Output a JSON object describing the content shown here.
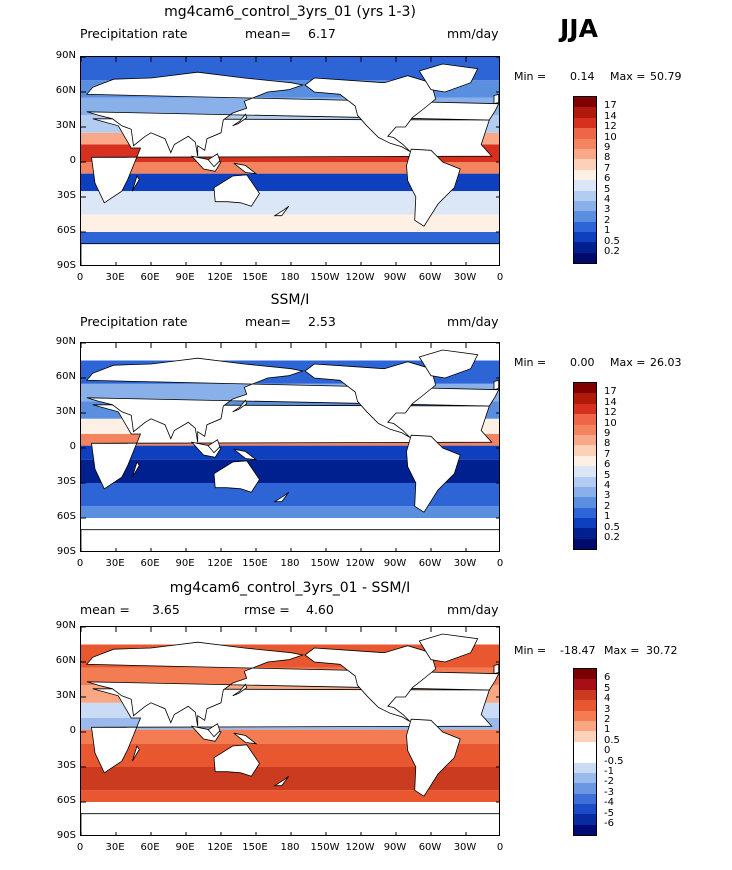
{
  "season": "JJA",
  "x_ticks": [
    "0",
    "30E",
    "60E",
    "90E",
    "120E",
    "150E",
    "180",
    "150W",
    "120W",
    "90W",
    "60W",
    "30W",
    "0"
  ],
  "y_ticks": [
    "90N",
    "60N",
    "30N",
    "0",
    "30S",
    "60S",
    "90S"
  ],
  "panels": [
    {
      "title": "mg4cam6_control_3yrs_01 (yrs 1-3)",
      "left_label": "Precipitation rate",
      "stat1_label": "mean=",
      "stat1_value": "6.17",
      "stat2_label": "",
      "stat2_value": "",
      "units": "mm/day",
      "min_label": "Min =",
      "min_value": "0.14",
      "max_label": "Max =",
      "max_value": "50.79",
      "palette": "precip",
      "colorbar": [
        "17",
        "14",
        "12",
        "10",
        "9",
        "8",
        "7",
        "6",
        "5",
        "4",
        "3",
        "2",
        "1",
        "0.5",
        "0.2"
      ]
    },
    {
      "title": "SSM/I",
      "left_label": "Precipitation rate",
      "stat1_label": "mean=",
      "stat1_value": "2.53",
      "stat2_label": "",
      "stat2_value": "",
      "units": "mm/day",
      "min_label": "Min =",
      "min_value": "0.00",
      "max_label": "Max =",
      "max_value": "26.03",
      "palette": "precip",
      "colorbar": [
        "17",
        "14",
        "12",
        "10",
        "9",
        "8",
        "7",
        "6",
        "5",
        "4",
        "3",
        "2",
        "1",
        "0.5",
        "0.2"
      ]
    },
    {
      "title": "mg4cam6_control_3yrs_01 - SSM/I",
      "left_label": "",
      "stat1_label": "mean =",
      "stat1_value": "3.65",
      "stat2_label": "rmse =",
      "stat2_value": "4.60",
      "units": "mm/day",
      "min_label": "Min =",
      "min_value": "-18.47",
      "max_label": "Max =",
      "max_value": "30.72",
      "palette": "diff",
      "colorbar": [
        "6",
        "5",
        "4",
        "3",
        "2",
        "1",
        "0.5",
        "0",
        "-0.5",
        "-1",
        "-2",
        "-3",
        "-4",
        "-5",
        "-6"
      ]
    }
  ],
  "palettes": {
    "precip": [
      "#800000",
      "#b01a0a",
      "#d7301f",
      "#ef6548",
      "#f4845f",
      "#f9a98a",
      "#fdd0b8",
      "#fff0e6",
      "#dbe6f7",
      "#b3cdf2",
      "#8ab0ea",
      "#5a8fe0",
      "#2e65d6",
      "#0d3fbf",
      "#00208f",
      "#000a6b"
    ],
    "diff": [
      "#7a0000",
      "#a50f15",
      "#cb3b1f",
      "#e8572f",
      "#f47c52",
      "#f9a683",
      "#fdd2b9",
      "#ffffff",
      "#ffffff",
      "#c9dbf5",
      "#9ab9ec",
      "#6b96e2",
      "#3e6fd8",
      "#1c4bc8",
      "#0a2aa3",
      "#000b76"
    ],
    "land": "#ffffff",
    "coast": "#000000"
  }
}
